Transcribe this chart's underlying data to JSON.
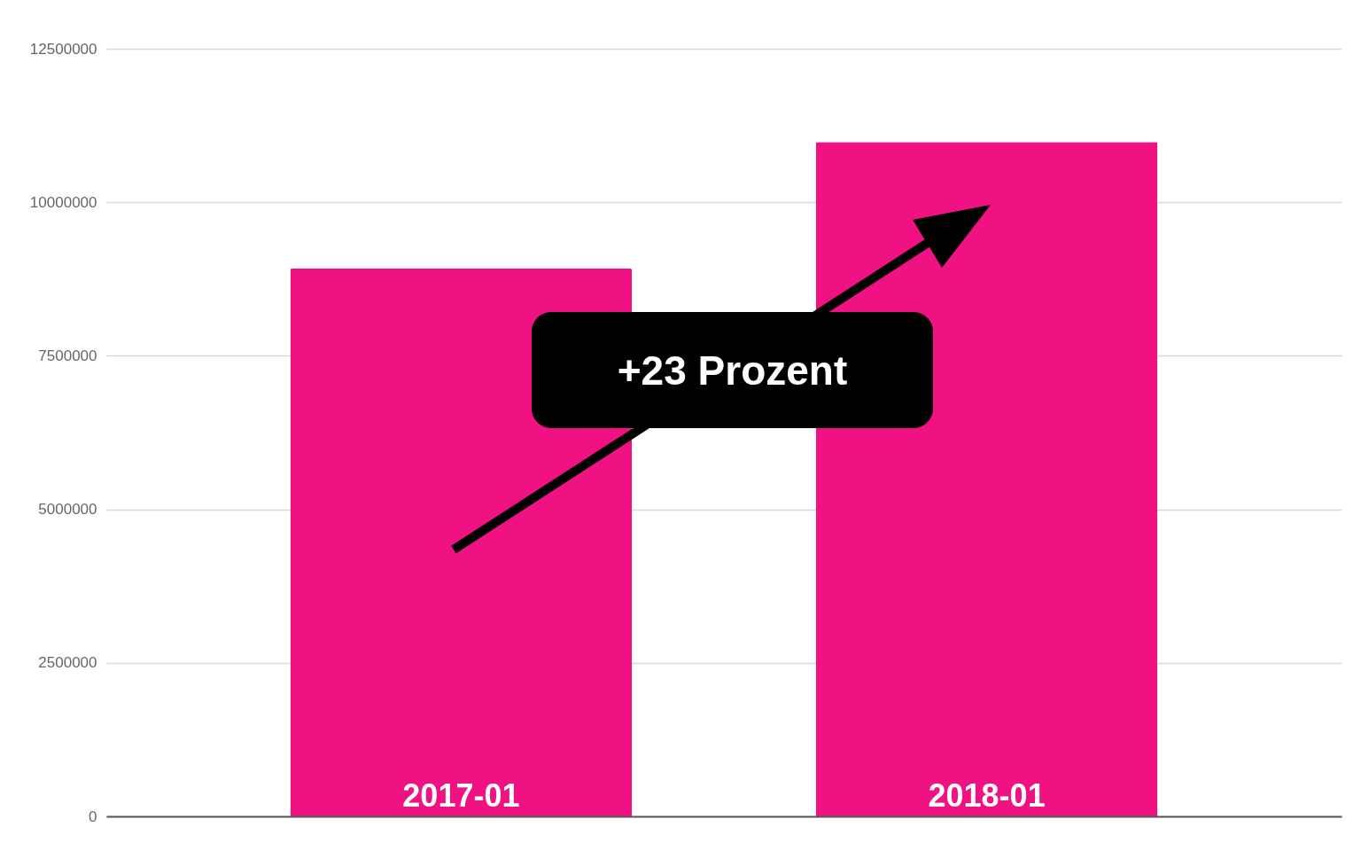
{
  "chart_data": {
    "type": "bar",
    "categories": [
      "2017-01",
      "2018-01"
    ],
    "values": [
      8920000,
      10980000
    ],
    "color": "#f01283",
    "ylim": [
      0,
      12500000
    ],
    "yticks": [
      0,
      2500000,
      5000000,
      7500000,
      10000000,
      12500000
    ],
    "grid": "y",
    "annotations": [
      "+23 Prozent"
    ]
  }
}
